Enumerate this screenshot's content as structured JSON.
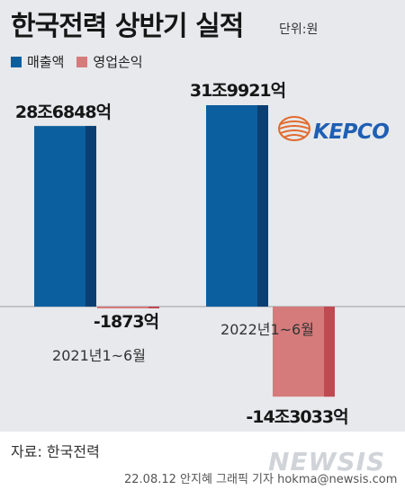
{
  "header": {
    "title": "한국전력 상반기 실적",
    "unit": "단위:원"
  },
  "legend": {
    "items": [
      {
        "label": "매출액",
        "color": "#0c5f9e"
      },
      {
        "label": "영업손익",
        "color": "#d67b7b"
      }
    ]
  },
  "logo": {
    "text": "KEPCO",
    "color": "#1f5fb3",
    "accent": "#e26a2c"
  },
  "chart_data": {
    "type": "bar",
    "categories": [
      "2021년1~6월",
      "2022년1~6월"
    ],
    "series": [
      {
        "name": "매출액",
        "values": [
          286848,
          319921
        ],
        "labels": [
          "28조6848억",
          "31조9921억"
        ],
        "color": "#0c5f9e",
        "shade": "#0b3f72"
      },
      {
        "name": "영업손익",
        "values": [
          -1873,
          -143033
        ],
        "labels": [
          "-1873억",
          "-14조3033억"
        ],
        "color": "#d67b7b",
        "shade": "#c04a52"
      }
    ],
    "value_unit": "억원",
    "ylim": [
      -143033,
      319921
    ]
  },
  "footer": {
    "source": "자료: 한국전력",
    "credit": "22.08.12 안지혜 그래픽 기자 hokma@newsis.com",
    "watermark": "NEWSIS"
  }
}
